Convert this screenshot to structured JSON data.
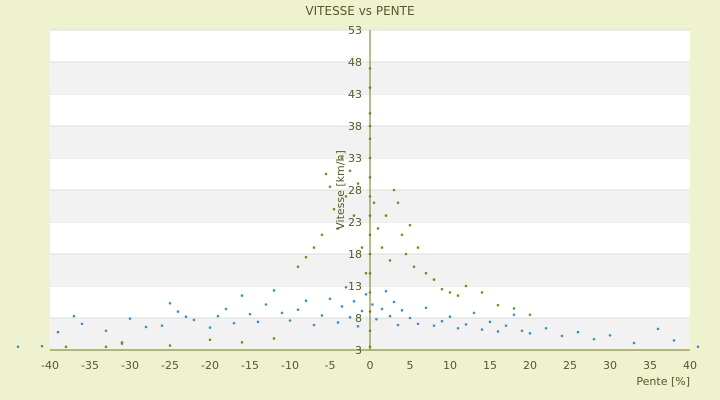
{
  "chart_data": {
    "type": "scatter",
    "title": "VITESSE vs PENTE",
    "xlabel": "Pente [%]",
    "ylabel": "Vitesse [km/h]",
    "xlim": [
      -40,
      40
    ],
    "ylim": [
      3,
      53
    ],
    "xticks": [
      -40,
      -35,
      -30,
      -25,
      -20,
      -15,
      -10,
      -5,
      0,
      5,
      10,
      15,
      20,
      25,
      30,
      35,
      40
    ],
    "yticks": [
      3,
      8,
      13,
      18,
      23,
      28,
      33,
      38,
      43,
      48,
      53
    ],
    "grid": "horizontal alternating bands",
    "legend": "none",
    "series_colors": [
      "#3a8fd6",
      "#7d8a1e"
    ],
    "series": [
      {
        "points": [
          [
            -44,
            3.5
          ],
          [
            -41,
            3.6
          ],
          [
            -39,
            5.8
          ],
          [
            -37,
            8.3
          ],
          [
            -36,
            7.1
          ],
          [
            -33,
            6.0
          ],
          [
            -31,
            4.2
          ],
          [
            -30,
            7.9
          ],
          [
            -28,
            6.6
          ],
          [
            -26,
            6.8
          ],
          [
            -25,
            10.3
          ],
          [
            -24,
            9.0
          ],
          [
            -23,
            8.2
          ],
          [
            -22,
            7.7
          ],
          [
            -20,
            6.5
          ],
          [
            -19,
            8.3
          ],
          [
            -18,
            9.4
          ],
          [
            -17,
            7.2
          ],
          [
            -16,
            11.5
          ],
          [
            -15,
            8.6
          ],
          [
            -14,
            7.4
          ],
          [
            -13,
            10.1
          ],
          [
            -12,
            12.3
          ],
          [
            -11,
            8.8
          ],
          [
            -10,
            7.6
          ],
          [
            -9,
            9.3
          ],
          [
            -8,
            10.7
          ],
          [
            -7,
            6.9
          ],
          [
            -6,
            8.4
          ],
          [
            -5,
            11.0
          ],
          [
            -4,
            7.3
          ],
          [
            -3.5,
            9.8
          ],
          [
            -3,
            12.8
          ],
          [
            -2.5,
            8.1
          ],
          [
            -2,
            10.6
          ],
          [
            -1.5,
            6.7
          ],
          [
            -1,
            9.1
          ],
          [
            -0.5,
            11.7
          ],
          [
            0.3,
            10.1
          ],
          [
            0.8,
            7.8
          ],
          [
            1.5,
            9.4
          ],
          [
            2,
            12.2
          ],
          [
            2.5,
            8.3
          ],
          [
            3,
            10.5
          ],
          [
            3.5,
            6.9
          ],
          [
            4,
            9.2
          ],
          [
            5,
            8.0
          ],
          [
            6,
            7.1
          ],
          [
            7,
            9.6
          ],
          [
            8,
            6.8
          ],
          [
            9,
            7.5
          ],
          [
            10,
            8.2
          ],
          [
            11,
            6.4
          ],
          [
            12,
            7.0
          ],
          [
            13,
            8.8
          ],
          [
            14,
            6.2
          ],
          [
            15,
            7.4
          ],
          [
            16,
            5.9
          ],
          [
            17,
            6.8
          ],
          [
            18,
            8.5
          ],
          [
            19,
            6.0
          ],
          [
            20,
            5.6
          ],
          [
            22,
            6.4
          ],
          [
            24,
            5.2
          ],
          [
            26,
            5.8
          ],
          [
            28,
            4.7
          ],
          [
            30,
            5.3
          ],
          [
            33,
            4.1
          ],
          [
            36,
            6.3
          ],
          [
            38,
            4.5
          ],
          [
            41,
            3.5
          ]
        ]
      },
      {
        "points": [
          [
            -38,
            3.5
          ],
          [
            -33,
            3.5
          ],
          [
            -31,
            4.0
          ],
          [
            -25,
            3.7
          ],
          [
            -20,
            4.6
          ],
          [
            -16,
            4.2
          ],
          [
            -12,
            4.8
          ],
          [
            -9,
            16.0
          ],
          [
            -8,
            17.5
          ],
          [
            -7,
            19.0
          ],
          [
            -6,
            21.0
          ],
          [
            -5.5,
            30.5
          ],
          [
            -5,
            28.5
          ],
          [
            -4.5,
            25.0
          ],
          [
            -4,
            22.0
          ],
          [
            -3.5,
            33.0
          ],
          [
            -3,
            27.0
          ],
          [
            -2.5,
            31.0
          ],
          [
            -2,
            24.0
          ],
          [
            -1.5,
            29.0
          ],
          [
            -1,
            19.0
          ],
          [
            -0.5,
            15.0
          ],
          [
            0,
            3.5
          ],
          [
            0,
            6.0
          ],
          [
            0,
            9.0
          ],
          [
            0,
            12.0
          ],
          [
            0,
            15.0
          ],
          [
            0,
            18.0
          ],
          [
            0,
            21.0
          ],
          [
            0,
            24.0
          ],
          [
            0,
            27.0
          ],
          [
            0,
            30.0
          ],
          [
            0,
            33.0
          ],
          [
            0,
            36.0
          ],
          [
            0,
            38.0
          ],
          [
            0,
            40.0
          ],
          [
            0,
            44.0
          ],
          [
            0,
            47.0
          ],
          [
            0.5,
            26.0
          ],
          [
            1,
            22.0
          ],
          [
            1.5,
            19.0
          ],
          [
            2,
            24.0
          ],
          [
            2.5,
            17.0
          ],
          [
            3,
            28.0
          ],
          [
            3.5,
            26.0
          ],
          [
            4,
            21.0
          ],
          [
            4.5,
            18.0
          ],
          [
            5,
            22.5
          ],
          [
            5.5,
            16.0
          ],
          [
            6,
            19.0
          ],
          [
            7,
            15.0
          ],
          [
            8,
            14.0
          ],
          [
            9,
            12.5
          ],
          [
            10,
            12.0
          ],
          [
            11,
            11.5
          ],
          [
            12,
            13.0
          ],
          [
            14,
            12.0
          ],
          [
            16,
            10.0
          ],
          [
            18,
            9.5
          ],
          [
            20,
            8.5
          ]
        ]
      }
    ]
  }
}
